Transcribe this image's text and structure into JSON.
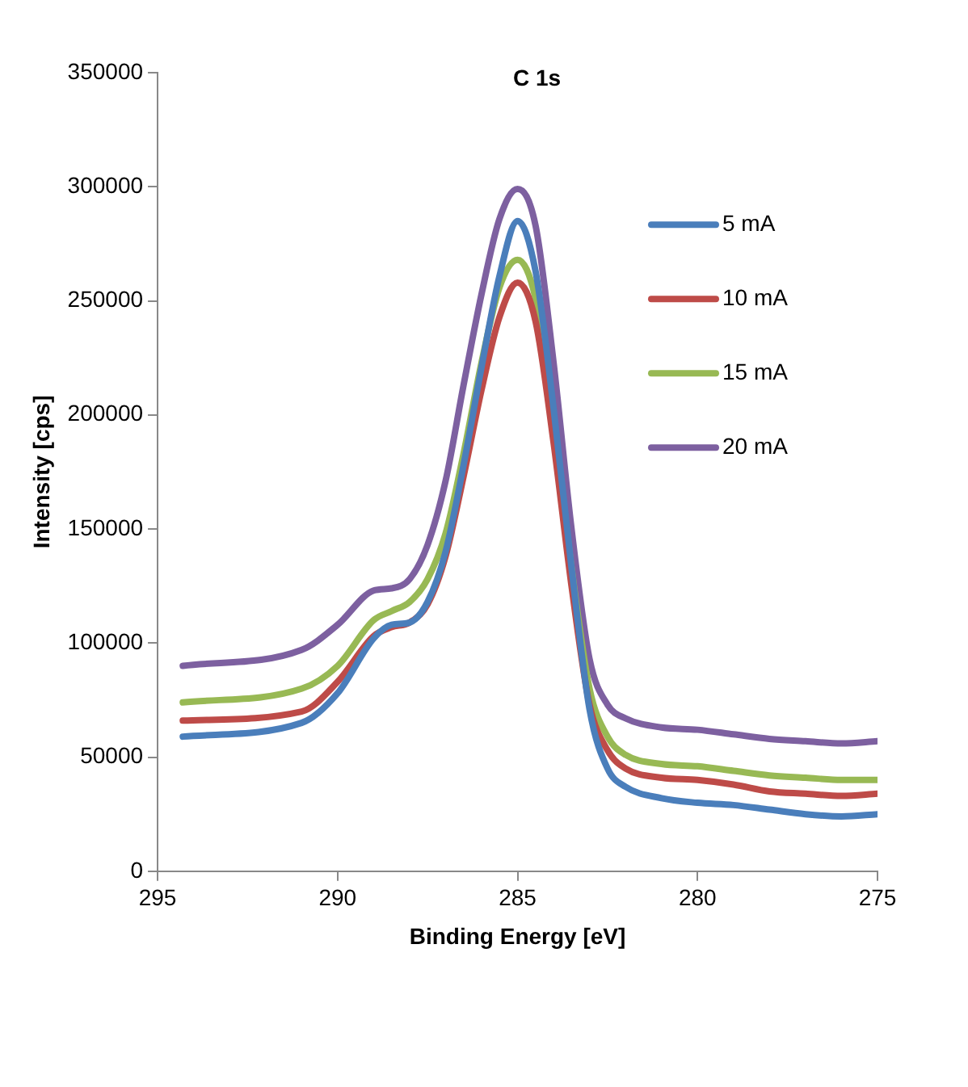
{
  "chart_data": {
    "type": "line",
    "title": "C 1s",
    "xlabel": "Binding Energy [eV]",
    "ylabel": "Intensity [cps]",
    "x": [
      294.3,
      291,
      290,
      289,
      288.5,
      288,
      287.5,
      287,
      286.5,
      286,
      285.5,
      285,
      284.5,
      284,
      283.5,
      283,
      282.5,
      282,
      281,
      280,
      279,
      278,
      277,
      276,
      275
    ],
    "series": [
      {
        "name": "5 mA",
        "color": "#4a7ebb",
        "values": [
          59000,
          65000,
          78000,
          102000,
          108000,
          109000,
          118000,
          140000,
          178000,
          221000,
          261000,
          285000,
          263000,
          203000,
          133000,
          71000,
          45000,
          37000,
          32000,
          30000,
          29000,
          27000,
          25000,
          24000,
          25000
        ]
      },
      {
        "name": "10 mA",
        "color": "#be4b48",
        "values": [
          66000,
          70000,
          83000,
          103000,
          107000,
          109000,
          117000,
          138000,
          173000,
          211000,
          243000,
          258000,
          241000,
          188000,
          125000,
          73000,
          53000,
          45000,
          41000,
          40000,
          38000,
          35000,
          34000,
          33000,
          34000
        ]
      },
      {
        "name": "15 mA",
        "color": "#98b954",
        "values": [
          74000,
          80000,
          90000,
          110000,
          114000,
          118000,
          128000,
          148000,
          183000,
          223000,
          256000,
          268000,
          251000,
          198000,
          133000,
          80000,
          59000,
          51000,
          47000,
          46000,
          44000,
          42000,
          41000,
          40000,
          40000
        ]
      },
      {
        "name": "20 mA",
        "color": "#7d60a0",
        "values": [
          90000,
          97000,
          108000,
          123000,
          124000,
          128000,
          143000,
          171000,
          213000,
          253000,
          286000,
          299000,
          283000,
          223000,
          150000,
          93000,
          73000,
          67000,
          63000,
          62000,
          60000,
          58000,
          57000,
          56000,
          57000
        ]
      }
    ],
    "xlim": [
      295,
      275
    ],
    "xticks": [
      295,
      290,
      285,
      280,
      275
    ],
    "ylim": [
      0,
      350000
    ],
    "yticks": [
      0,
      50000,
      100000,
      150000,
      200000,
      250000,
      300000,
      350000
    ],
    "grid": false,
    "legend": "right",
    "marker": "none",
    "line_style": "solid"
  }
}
